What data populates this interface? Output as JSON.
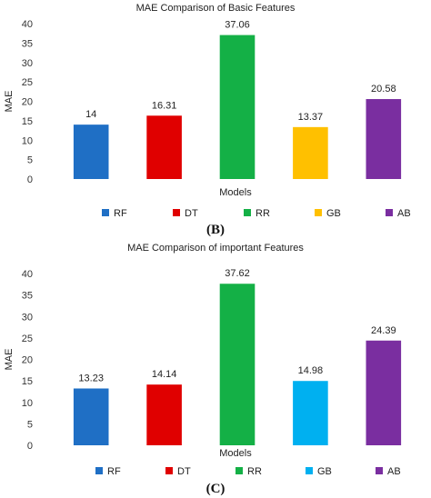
{
  "panels": [
    {
      "label": "(B)"
    },
    {
      "label": "(C)"
    }
  ],
  "chart_data": [
    {
      "type": "bar",
      "title": "MAE Comparison of Basic Features",
      "xlabel": "Models",
      "ylabel": "MAE",
      "ylim": [
        0,
        40
      ],
      "yticks": [
        0,
        5,
        10,
        15,
        20,
        25,
        30,
        35,
        40
      ],
      "grid": false,
      "legend_position": "bottom",
      "categories": [
        "RF",
        "DT",
        "RR",
        "GB",
        "AB"
      ],
      "values": [
        14,
        16.31,
        37.06,
        13.37,
        20.58
      ],
      "value_labels": [
        "14",
        "16.31",
        "37.06",
        "13.37",
        "20.58"
      ],
      "colors": [
        "#1f6fc5",
        "#e00000",
        "#14b046",
        "#ffc000",
        "#7a2ea0"
      ]
    },
    {
      "type": "bar",
      "title": "MAE Comparison of important Features",
      "xlabel": "Models",
      "ylabel": "MAE",
      "ylim": [
        0,
        40
      ],
      "yticks": [
        0,
        5,
        10,
        15,
        20,
        25,
        30,
        35,
        40
      ],
      "grid": false,
      "legend_position": "bottom",
      "categories": [
        "RF",
        "DT",
        "RR",
        "GB",
        "AB"
      ],
      "values": [
        13.23,
        14.14,
        37.62,
        14.98,
        24.39
      ],
      "value_labels": [
        "13.23",
        "14.14",
        "37.62",
        "14.98",
        "24.39"
      ],
      "colors": [
        "#1f6fc5",
        "#e00000",
        "#14b046",
        "#00b0f0",
        "#7a2ea0"
      ]
    }
  ]
}
